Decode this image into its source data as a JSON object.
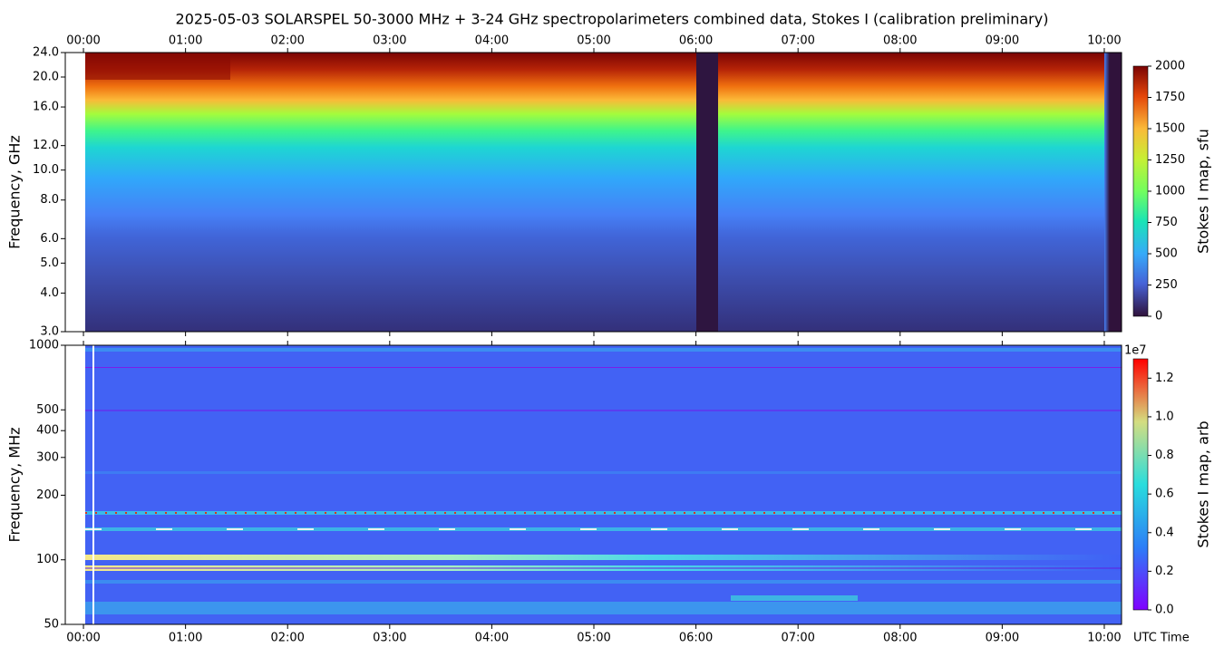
{
  "chart_data": [
    {
      "type": "heatmap",
      "title": "2025-05-03  SOLARSPEL  50-3000 MHz  +  3-24 GHz  spectropolarimeters combined data,  Stokes I  (calibration preliminary)",
      "y_label": "Frequency, GHz",
      "xlim": [
        -0.178,
        10.169
      ],
      "xticks": [
        {
          "value": 0,
          "label": "00:00"
        },
        {
          "value": 1,
          "label": "01:00"
        },
        {
          "value": 2,
          "label": "02:00"
        },
        {
          "value": 3,
          "label": "03:00"
        },
        {
          "value": 4,
          "label": "04:00"
        },
        {
          "value": 5,
          "label": "05:00"
        },
        {
          "value": 6,
          "label": "06:00"
        },
        {
          "value": 7,
          "label": "07:00"
        },
        {
          "value": 8,
          "label": "08:00"
        },
        {
          "value": 9,
          "label": "09:00"
        },
        {
          "value": 10,
          "label": "10:00"
        }
      ],
      "y_log": true,
      "ylim": [
        3,
        24
      ],
      "yticks": [
        {
          "value": 3,
          "label": "3.0"
        },
        {
          "value": 4,
          "label": "4.0"
        },
        {
          "value": 5,
          "label": "5.0"
        },
        {
          "value": 6,
          "label": "6.0"
        },
        {
          "value": 8,
          "label": "8.0"
        },
        {
          "value": 10,
          "label": "10.0"
        },
        {
          "value": 12,
          "label": "12.0"
        },
        {
          "value": 16,
          "label": "16.0"
        },
        {
          "value": 20,
          "label": "20.0"
        },
        {
          "value": 24,
          "label": "24.0"
        }
      ],
      "colorbar": {
        "label": "Stokes I map, sfu",
        "colormap": "turbo",
        "lim": [
          0,
          2000
        ],
        "ticks": [
          0,
          250,
          500,
          750,
          1000,
          1250,
          1500,
          1750,
          2000
        ]
      }
    },
    {
      "type": "heatmap",
      "x_label": "UTC Time",
      "y_label": "Frequency, MHz",
      "xlim": [
        -0.178,
        10.169
      ],
      "xticks": [
        {
          "value": 0,
          "label": "00:00"
        },
        {
          "value": 1,
          "label": "01:00"
        },
        {
          "value": 2,
          "label": "02:00"
        },
        {
          "value": 3,
          "label": "03:00"
        },
        {
          "value": 4,
          "label": "04:00"
        },
        {
          "value": 5,
          "label": "05:00"
        },
        {
          "value": 6,
          "label": "06:00"
        },
        {
          "value": 7,
          "label": "07:00"
        },
        {
          "value": 8,
          "label": "08:00"
        },
        {
          "value": 9,
          "label": "09:00"
        },
        {
          "value": 10,
          "label": "10:00"
        }
      ],
      "y_log": true,
      "ylim": [
        50,
        1000
      ],
      "yticks": [
        50,
        100,
        200,
        300,
        400,
        500,
        1000
      ],
      "colorbar": {
        "label": "Stokes I map, arb",
        "colormap": "rainbow",
        "exponent_label": "1e7",
        "lim": [
          0,
          1.3
        ],
        "ticks": [
          {
            "value": 0,
            "label": "0.0"
          },
          {
            "value": 0.2,
            "label": "0.2"
          },
          {
            "value": 0.4,
            "label": "0.4"
          },
          {
            "value": 0.6,
            "label": "0.6"
          },
          {
            "value": 0.8,
            "label": "0.8"
          },
          {
            "value": 1,
            "label": "1.0"
          },
          {
            "value": 1.2,
            "label": "1.2"
          }
        ]
      }
    }
  ]
}
